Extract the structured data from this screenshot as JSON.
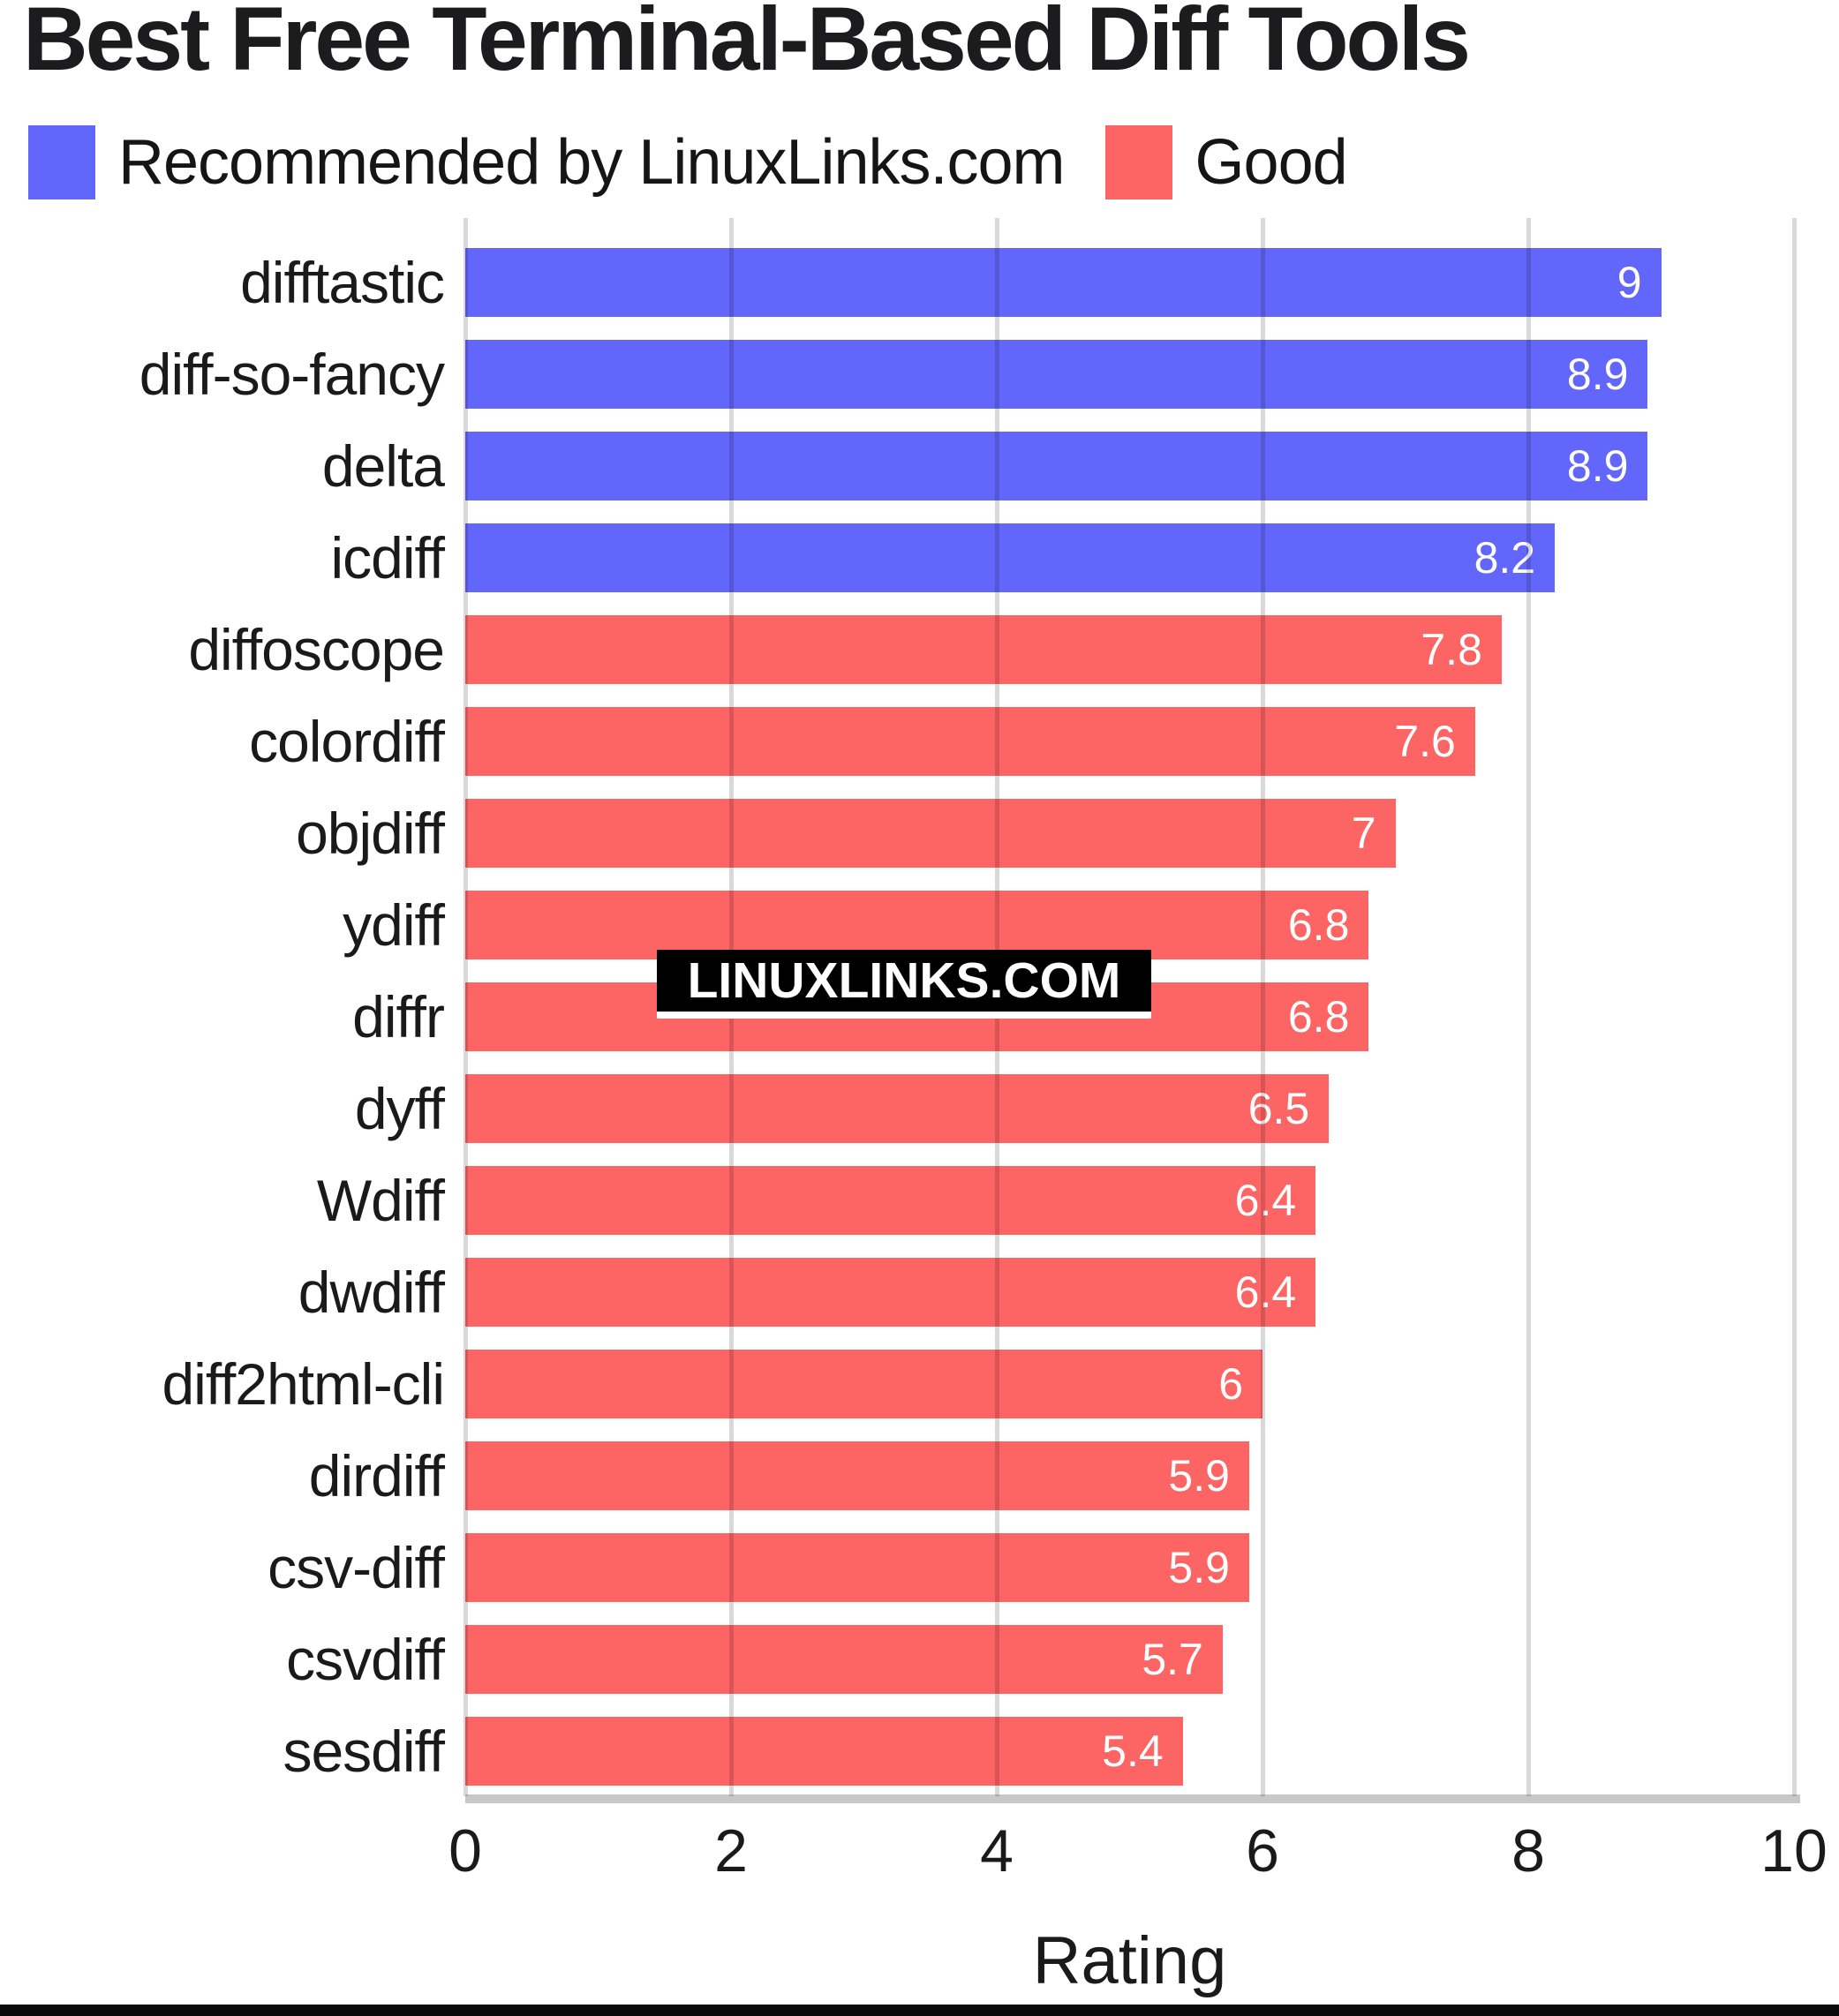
{
  "chart": {
    "title": "Best Free Terminal-Based Diff Tools",
    "xlabel": "Rating",
    "watermark": "LINUXLINKS.COM",
    "legend_items": [
      {
        "label": "Recommended by LinuxLinks.com",
        "key": "recommended"
      },
      {
        "label": "Good",
        "key": "good"
      }
    ],
    "colors": {
      "recommended": "#6366fa",
      "good": "#fd6464",
      "gridline": "#cccccc",
      "axis_line": "#c8c8c8",
      "text": "#1a1a1a",
      "value_text": "#ffffff",
      "watermark_bg": "#000000",
      "watermark_text": "#ffffff"
    }
  },
  "chart_data": {
    "type": "bar",
    "orientation": "horizontal",
    "title": "Best Free Terminal-Based Diff Tools",
    "xlabel": "Rating",
    "ylabel": "",
    "xlim": [
      0,
      10
    ],
    "xticks": [
      0,
      2,
      4,
      6,
      8,
      10
    ],
    "grid": true,
    "legend_position": "top-left",
    "categories": [
      "difftastic",
      "diff-so-fancy",
      "delta",
      "icdiff",
      "diffoscope",
      "colordiff",
      "objdiff",
      "ydiff",
      "diffr",
      "dyff",
      "Wdiff",
      "dwdiff",
      "diff2html-cli",
      "dirdiff",
      "csv-diff",
      "csvdiff",
      "sesdiff"
    ],
    "values": [
      9,
      8.9,
      8.9,
      8.2,
      7.8,
      7.6,
      7,
      6.8,
      6.8,
      6.5,
      6.4,
      6.4,
      6,
      5.9,
      5.9,
      5.7,
      5.4
    ],
    "value_labels": [
      "9",
      "8.9",
      "8.9",
      "8.2",
      "7.8",
      "7.6",
      "7",
      "6.8",
      "6.8",
      "6.5",
      "6.4",
      "6.4",
      "6",
      "5.9",
      "5.9",
      "5.7",
      "5.4"
    ],
    "bar_groups": [
      "recommended",
      "recommended",
      "recommended",
      "recommended",
      "good",
      "good",
      "good",
      "good",
      "good",
      "good",
      "good",
      "good",
      "good",
      "good",
      "good",
      "good",
      "good"
    ],
    "series": [
      {
        "name": "Recommended by LinuxLinks.com",
        "key": "recommended",
        "color": "#6366fa",
        "categories": [
          "difftastic",
          "diff-so-fancy",
          "delta",
          "icdiff"
        ],
        "values": [
          9,
          8.9,
          8.9,
          8.2
        ]
      },
      {
        "name": "Good",
        "key": "good",
        "color": "#fd6464",
        "categories": [
          "diffoscope",
          "colordiff",
          "objdiff",
          "ydiff",
          "diffr",
          "dyff",
          "Wdiff",
          "dwdiff",
          "diff2html-cli",
          "dirdiff",
          "csv-diff",
          "csvdiff",
          "sesdiff"
        ],
        "values": [
          7.8,
          7.6,
          7,
          6.8,
          6.8,
          6.5,
          6.4,
          6.4,
          6,
          5.9,
          5.9,
          5.7,
          5.4
        ]
      }
    ]
  }
}
